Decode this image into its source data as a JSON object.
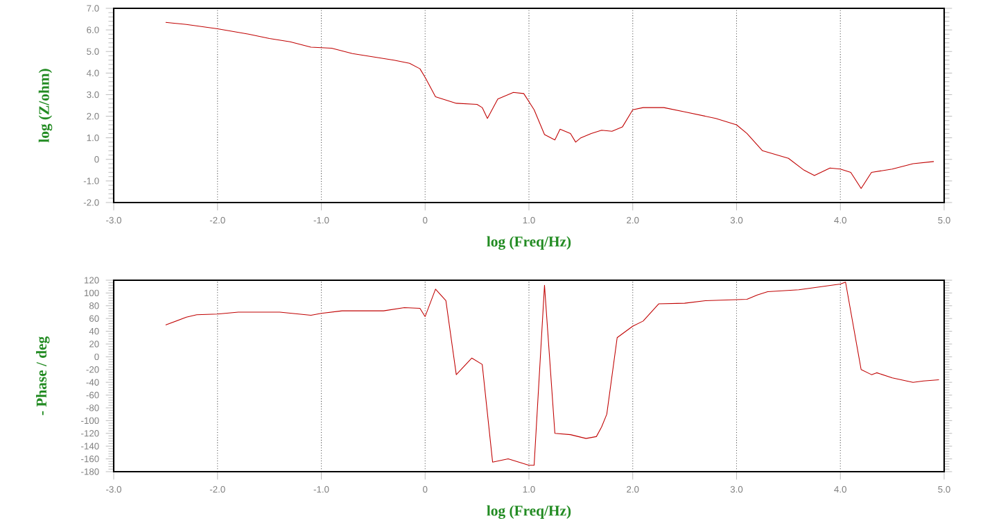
{
  "chart_data": [
    {
      "type": "line",
      "xlabel": "log (Freq/Hz)",
      "ylabel": "log (Z/ohm)",
      "grid": "x",
      "line_style": "solid",
      "marker": "none",
      "xlim": [
        -3,
        5
      ],
      "ylim": [
        -2,
        7
      ],
      "xticks": [
        {
          "value": -3,
          "label": "-3.0"
        },
        {
          "value": -2,
          "label": "-2.0"
        },
        {
          "value": -1,
          "label": "-1.0"
        },
        0,
        {
          "value": 1,
          "label": "1.0"
        },
        {
          "value": 2,
          "label": "2.0"
        },
        {
          "value": 3,
          "label": "3.0"
        },
        {
          "value": 4,
          "label": "4.0"
        },
        {
          "value": 5,
          "label": "5.0"
        }
      ],
      "yticks": [
        {
          "value": -2,
          "label": "-2.0"
        },
        {
          "value": -1,
          "label": "-1.0"
        },
        0,
        {
          "value": 1,
          "label": "1.0"
        },
        {
          "value": 2,
          "label": "2.0"
        },
        {
          "value": 3,
          "label": "3.0"
        },
        {
          "value": 4,
          "label": "4.0"
        },
        {
          "value": 5,
          "label": "5.0"
        },
        {
          "value": 6,
          "label": "6.0"
        },
        {
          "value": 7,
          "label": "7.0"
        }
      ],
      "series": [
        {
          "color": "#c00000",
          "x": [
            -2.5,
            -2.3,
            -2.0,
            -1.7,
            -1.5,
            -1.3,
            -1.1,
            -0.9,
            -0.7,
            -0.5,
            -0.3,
            -0.15,
            -0.05,
            0.0,
            0.1,
            0.3,
            0.5,
            0.55,
            0.6,
            0.7,
            0.85,
            0.95,
            1.05,
            1.15,
            1.25,
            1.3,
            1.4,
            1.45,
            1.5,
            1.6,
            1.7,
            1.8,
            1.9,
            2.0,
            2.1,
            2.3,
            2.5,
            2.8,
            3.0,
            3.1,
            3.25,
            3.5,
            3.65,
            3.75,
            3.9,
            4.0,
            4.1,
            4.2,
            4.3,
            4.5,
            4.7,
            4.9
          ],
          "values": [
            6.35,
            6.25,
            6.05,
            5.8,
            5.6,
            5.45,
            5.2,
            5.15,
            4.9,
            4.75,
            4.6,
            4.45,
            4.2,
            3.8,
            2.9,
            2.6,
            2.55,
            2.4,
            1.9,
            2.8,
            3.1,
            3.05,
            2.3,
            1.15,
            0.9,
            1.4,
            1.2,
            0.8,
            1.0,
            1.2,
            1.35,
            1.3,
            1.5,
            2.3,
            2.4,
            2.4,
            2.2,
            1.9,
            1.6,
            1.2,
            0.4,
            0.05,
            -0.5,
            -0.75,
            -0.4,
            -0.45,
            -0.6,
            -1.35,
            -0.6,
            -0.45,
            -0.2,
            -0.1
          ]
        }
      ]
    },
    {
      "type": "line",
      "xlabel": "log (Freq/Hz)",
      "ylabel": "- Phase / deg",
      "grid": "x",
      "line_style": "solid",
      "marker": "none",
      "xlim": [
        -3,
        5
      ],
      "ylim": [
        -180,
        120
      ],
      "xticks": [
        {
          "value": -3,
          "label": "-3.0"
        },
        {
          "value": -2,
          "label": "-2.0"
        },
        {
          "value": -1,
          "label": "-1.0"
        },
        0,
        {
          "value": 1,
          "label": "1.0"
        },
        {
          "value": 2,
          "label": "2.0"
        },
        {
          "value": 3,
          "label": "3.0"
        },
        {
          "value": 4,
          "label": "4.0"
        },
        {
          "value": 5,
          "label": "5.0"
        }
      ],
      "yticks": [
        -180,
        -160,
        -140,
        -120,
        -100,
        -80,
        -60,
        -40,
        -20,
        0,
        20,
        40,
        60,
        80,
        100,
        120
      ],
      "series": [
        {
          "color": "#c00000",
          "x": [
            -2.5,
            -2.3,
            -2.2,
            -2.0,
            -1.8,
            -1.4,
            -1.1,
            -1.0,
            -0.8,
            -0.4,
            -0.2,
            -0.05,
            0.0,
            0.1,
            0.2,
            0.3,
            0.45,
            0.55,
            0.65,
            0.8,
            1.0,
            1.05,
            1.15,
            1.25,
            1.4,
            1.55,
            1.65,
            1.7,
            1.75,
            1.85,
            2.0,
            2.1,
            2.25,
            2.5,
            2.7,
            3.1,
            3.2,
            3.3,
            3.6,
            4.0,
            4.05,
            4.2,
            4.3,
            4.35,
            4.5,
            4.7,
            4.8,
            4.95
          ],
          "values": [
            50,
            62,
            66,
            67,
            70,
            70,
            65,
            68,
            72,
            72,
            77,
            76,
            63,
            106,
            88,
            -28,
            -2,
            -12,
            -165,
            -160,
            -170,
            -170,
            112,
            -120,
            -122,
            -128,
            -125,
            -110,
            -90,
            30,
            48,
            56,
            83,
            84,
            88,
            90,
            97,
            102,
            105,
            114,
            117,
            -20,
            -28,
            -25,
            -33,
            -40,
            -38,
            -36
          ]
        }
      ]
    }
  ]
}
